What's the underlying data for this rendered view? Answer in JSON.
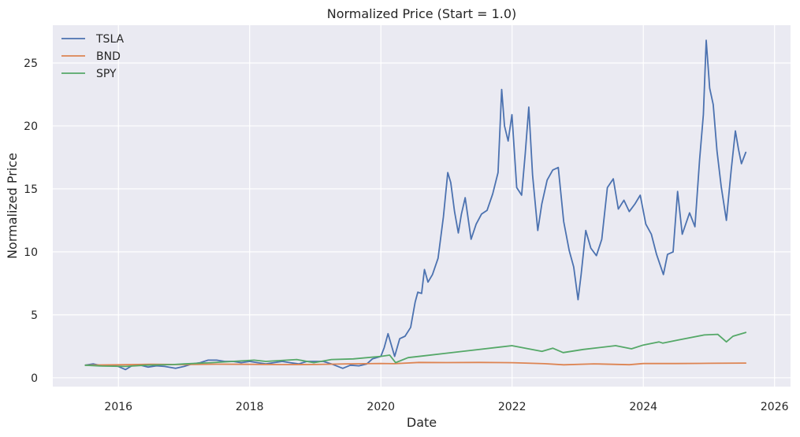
{
  "colors": {
    "background": "#eaeaf2",
    "grid": "#ffffff",
    "TSLA": "#4c72b0",
    "BND": "#dd8452",
    "SPY": "#55a868"
  },
  "chart_data": {
    "type": "line",
    "title": "Normalized Price (Start = 1.0)",
    "xlabel": "Date",
    "ylabel": "Normalized Price",
    "x_axis_type": "date",
    "xlim": [
      "2015-01-01",
      "2026-03-31"
    ],
    "ylim": [
      -0.7,
      28.0
    ],
    "xticks": [
      "2016",
      "2018",
      "2020",
      "2022",
      "2024",
      "2026"
    ],
    "yticks": [
      "0",
      "5",
      "10",
      "15",
      "20",
      "25"
    ],
    "grid": true,
    "legend_position": "top-left",
    "series": [
      {
        "name": "TSLA",
        "x": [
          "2015-07-01",
          "2015-08-15",
          "2015-10-01",
          "2015-11-15",
          "2016-01-01",
          "2016-02-10",
          "2016-03-15",
          "2016-05-01",
          "2016-06-15",
          "2016-08-01",
          "2016-09-15",
          "2016-11-15",
          "2017-01-01",
          "2017-02-15",
          "2017-04-01",
          "2017-05-15",
          "2017-07-01",
          "2017-08-15",
          "2017-10-01",
          "2017-11-15",
          "2018-01-01",
          "2018-02-15",
          "2018-04-01",
          "2018-05-15",
          "2018-07-01",
          "2018-08-15",
          "2018-10-01",
          "2018-11-15",
          "2019-01-01",
          "2019-02-15",
          "2019-04-01",
          "2019-06-03",
          "2019-07-15",
          "2019-09-01",
          "2019-10-15",
          "2019-11-15",
          "2020-01-01",
          "2020-01-20",
          "2020-02-10",
          "2020-03-18",
          "2020-04-15",
          "2020-05-15",
          "2020-06-15",
          "2020-07-10",
          "2020-07-25",
          "2020-08-15",
          "2020-08-31",
          "2020-09-20",
          "2020-10-15",
          "2020-11-15",
          "2020-12-15",
          "2021-01-08",
          "2021-01-25",
          "2021-02-15",
          "2021-03-08",
          "2021-03-25",
          "2021-04-15",
          "2021-05-18",
          "2021-06-15",
          "2021-07-15",
          "2021-08-15",
          "2021-09-15",
          "2021-10-15",
          "2021-11-04",
          "2021-11-20",
          "2021-12-10",
          "2021-12-31",
          "2022-01-27",
          "2022-02-23",
          "2022-03-15",
          "2022-04-04",
          "2022-04-25",
          "2022-05-24",
          "2022-06-15",
          "2022-07-15",
          "2022-08-15",
          "2022-09-15",
          "2022-10-15",
          "2022-11-15",
          "2022-12-10",
          "2023-01-03",
          "2023-01-20",
          "2023-02-15",
          "2023-03-15",
          "2023-04-15",
          "2023-05-15",
          "2023-06-15",
          "2023-07-18",
          "2023-08-15",
          "2023-09-15",
          "2023-10-15",
          "2023-11-15",
          "2023-12-15",
          "2024-01-15",
          "2024-02-15",
          "2024-03-15",
          "2024-04-22",
          "2024-05-15",
          "2024-06-15",
          "2024-07-10",
          "2024-08-05",
          "2024-09-15",
          "2024-10-15",
          "2024-11-10",
          "2024-12-01",
          "2024-12-17",
          "2025-01-05",
          "2025-01-25",
          "2025-02-15",
          "2025-03-10",
          "2025-04-08",
          "2025-05-05",
          "2025-05-28",
          "2025-06-15",
          "2025-07-01",
          "2025-07-25"
        ],
        "values": [
          1.0,
          1.1,
          0.95,
          1.0,
          0.9,
          0.65,
          0.95,
          1.0,
          0.85,
          0.95,
          0.9,
          0.75,
          0.9,
          1.1,
          1.2,
          1.4,
          1.4,
          1.3,
          1.3,
          1.2,
          1.3,
          1.2,
          1.1,
          1.2,
          1.3,
          1.2,
          1.1,
          1.3,
          1.3,
          1.3,
          1.1,
          0.75,
          1.0,
          0.95,
          1.1,
          1.5,
          1.7,
          2.4,
          3.5,
          1.7,
          3.1,
          3.3,
          4.0,
          6.0,
          6.8,
          6.7,
          8.6,
          7.6,
          8.2,
          9.5,
          12.8,
          16.3,
          15.5,
          13.2,
          11.5,
          13.0,
          14.3,
          11.0,
          12.2,
          13.0,
          13.3,
          14.6,
          16.3,
          22.9,
          20.0,
          18.8,
          20.9,
          15.1,
          14.5,
          17.8,
          21.5,
          16.1,
          11.7,
          13.8,
          15.7,
          16.5,
          16.7,
          12.4,
          10.1,
          8.8,
          6.2,
          8.2,
          11.7,
          10.3,
          9.7,
          11.0,
          15.1,
          15.8,
          13.4,
          14.1,
          13.2,
          13.8,
          14.5,
          12.2,
          11.4,
          9.8,
          8.2,
          9.8,
          10.0,
          14.8,
          11.4,
          13.1,
          12.0,
          17.3,
          20.9,
          26.8,
          23.0,
          21.7,
          18.0,
          15.2,
          12.5,
          16.5,
          19.6,
          18.1,
          17.0,
          17.9
        ]
      },
      {
        "name": "BND",
        "x": [
          "2015-07-01",
          "2016-01-01",
          "2016-07-01",
          "2017-01-01",
          "2017-07-01",
          "2018-01-01",
          "2018-07-01",
          "2019-01-01",
          "2019-07-01",
          "2020-01-01",
          "2020-03-15",
          "2020-08-01",
          "2021-01-01",
          "2021-07-01",
          "2022-01-01",
          "2022-07-01",
          "2022-10-15",
          "2023-04-01",
          "2023-10-15",
          "2024-01-01",
          "2024-07-01",
          "2025-01-01",
          "2025-07-25"
        ],
        "values": [
          1.0,
          1.03,
          1.07,
          1.05,
          1.08,
          1.07,
          1.05,
          1.06,
          1.11,
          1.14,
          1.12,
          1.22,
          1.21,
          1.22,
          1.2,
          1.12,
          1.03,
          1.11,
          1.04,
          1.13,
          1.13,
          1.15,
          1.17
        ]
      },
      {
        "name": "SPY",
        "x": [
          "2015-07-01",
          "2015-10-01",
          "2016-02-10",
          "2016-06-01",
          "2016-11-01",
          "2017-01-01",
          "2017-06-01",
          "2018-01-26",
          "2018-04-01",
          "2018-09-20",
          "2018-12-24",
          "2019-04-01",
          "2019-08-01",
          "2019-12-31",
          "2020-02-19",
          "2020-03-23",
          "2020-06-01",
          "2020-09-01",
          "2020-12-31",
          "2021-06-01",
          "2021-12-31",
          "2022-06-16",
          "2022-08-15",
          "2022-10-12",
          "2023-02-01",
          "2023-07-31",
          "2023-10-27",
          "2024-01-01",
          "2024-03-28",
          "2024-04-19",
          "2024-07-15",
          "2024-12-06",
          "2025-02-19",
          "2025-04-08",
          "2025-05-15",
          "2025-07-25"
        ],
        "values": [
          1.0,
          0.93,
          0.9,
          1.0,
          1.05,
          1.1,
          1.2,
          1.4,
          1.3,
          1.45,
          1.2,
          1.45,
          1.5,
          1.7,
          1.8,
          1.2,
          1.6,
          1.75,
          1.95,
          2.2,
          2.55,
          2.1,
          2.35,
          2.0,
          2.25,
          2.55,
          2.3,
          2.6,
          2.85,
          2.75,
          3.0,
          3.4,
          3.45,
          2.85,
          3.3,
          3.6
        ]
      }
    ]
  }
}
